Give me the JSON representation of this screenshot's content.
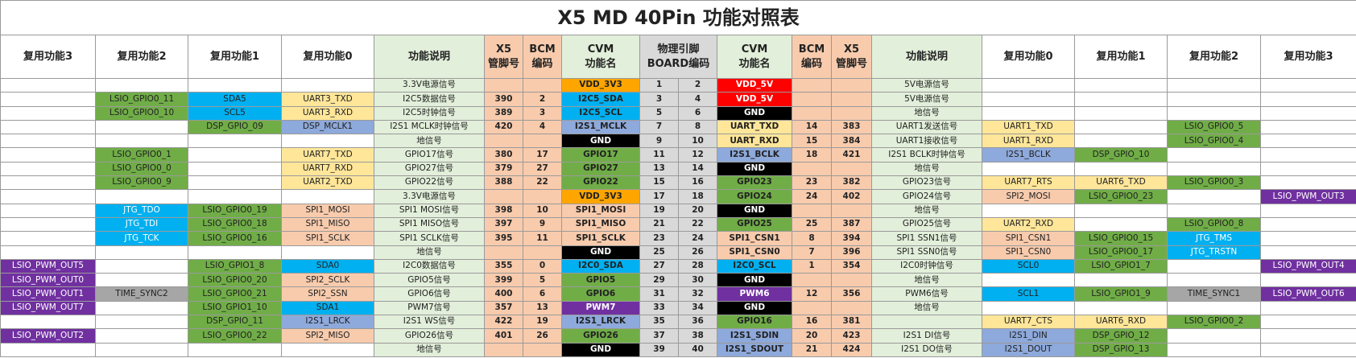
{
  "title": "X5 MD 40Pin 功能对照表",
  "header": [
    "复用功能3",
    "复用功能2",
    "复用功能1",
    "复用功能0",
    "功能说明",
    [
      "X5",
      "管脚号"
    ],
    [
      "BCM",
      "编码"
    ],
    [
      "CVM",
      "功能名"
    ],
    [
      "物理引脚",
      "BOARD编码"
    ],
    [
      "CVM",
      "功能名"
    ],
    [
      "BCM",
      "编码"
    ],
    [
      "X5",
      "管脚号"
    ],
    "功能说明",
    "复用功能0",
    "复用功能1",
    "复用功能2",
    "复用功能3"
  ],
  "rows": [
    [
      null,
      null,
      null,
      null,
      "3.3V电源信号",
      null,
      null,
      "VDD_3V3",
      1,
      2,
      "VDD_5V",
      null,
      null,
      "5V电源信号",
      null,
      null,
      null,
      null
    ],
    [
      null,
      "LSIO_GPIO0_11",
      "SDA5",
      "UART3_TXD",
      "I2C5数据信号",
      390,
      2,
      "I2C5_SDA",
      3,
      4,
      "VDD_5V",
      null,
      null,
      "5V电源信号",
      null,
      null,
      null,
      null
    ],
    [
      null,
      "LSIO_GPIO0_10",
      "SCL5",
      "UART3_RXD",
      "I2C5时钟信号",
      389,
      3,
      "I2C5_SCL",
      5,
      6,
      "GND",
      null,
      null,
      "地信号",
      null,
      null,
      null,
      null
    ],
    [
      null,
      null,
      "DSP_GPIO_09",
      "DSP_MCLK1",
      "I2S1 MCLK时钟信号",
      420,
      4,
      "I2S1_MCLK",
      7,
      8,
      "UART_TXD",
      14,
      383,
      "UART1发送信号",
      "UART1_TXD",
      null,
      "LSIO_GPIO0_5",
      null
    ],
    [
      null,
      null,
      null,
      null,
      "地信号",
      null,
      null,
      "GND",
      9,
      10,
      "UART_RXD",
      15,
      384,
      "UART1接收信号",
      "UART1_RXD",
      null,
      "LSIO_GPIO0_4",
      null
    ],
    [
      null,
      "LSIO_GPIO0_1",
      null,
      "UART7_TXD",
      "GPIO17信号",
      380,
      17,
      "GPIO17",
      11,
      12,
      "I2S1_BCLK",
      18,
      421,
      "I2S1 BCLK时钟信号",
      "I2S1_BCLK",
      "DSP_GPIO_10",
      null,
      null
    ],
    [
      null,
      "LSIO_GPIO0_0",
      null,
      "UART7_RXD",
      "GPIO27信号",
      379,
      27,
      "GPIO27",
      13,
      14,
      "GND",
      null,
      null,
      "地信号",
      null,
      null,
      null,
      null
    ],
    [
      null,
      "LSIO_GPIO0_9",
      null,
      "UART2_TXD",
      "GPIO22信号",
      388,
      22,
      "GPIO22",
      15,
      16,
      "GPIO23",
      23,
      382,
      "GPIO23信号",
      "UART7_RTS",
      "UART6_TXD",
      "LSIO_GPIO0_3",
      null
    ],
    [
      null,
      null,
      null,
      null,
      "3.3V电源信号",
      null,
      null,
      "VDD_3V3",
      17,
      18,
      "GPIO24",
      24,
      402,
      "GPIO24信号",
      "SPI2_MOSI",
      "LSIO_GPIO0_23",
      null,
      "LSIO_PWM_OUT3"
    ],
    [
      null,
      "JTG_TDO",
      "LSIO_GPIO0_19",
      "SPI1_MOSI",
      "SPI1 MOSI信号",
      398,
      10,
      "SPI1_MOSI",
      19,
      20,
      "GND",
      null,
      null,
      "地信号",
      null,
      null,
      null,
      null
    ],
    [
      null,
      "JTG_TDI",
      "LSIO_GPIO0_18",
      "SPI1_MISO",
      "SPI1 MISO信号",
      397,
      9,
      "SPI1_MISO",
      21,
      22,
      "GPIO25",
      25,
      387,
      "GPIO25信号",
      "UART2_RXD",
      null,
      "LSIO_GPIO0_8",
      null
    ],
    [
      null,
      "JTG_TCK",
      "LSIO_GPIO0_16",
      "SPI1_SCLK",
      "SPI1 SCLK信号",
      395,
      11,
      "SPI1_SCLK",
      23,
      24,
      "SPI1_CSN1",
      8,
      394,
      "SPI1 SSN1信号",
      "SPI1_CSN1",
      "LSIO_GPIO0_15",
      "JTG_TMS",
      null
    ],
    [
      null,
      null,
      null,
      null,
      "地信号",
      null,
      null,
      "GND",
      25,
      26,
      "SPI1_CSN0",
      7,
      396,
      "SPI1 SSN0信号",
      "SPI1_CSN0",
      "LSIO_GPIO0_17",
      "JTG_TRSTN",
      null
    ],
    [
      "LSIO_PWM_OUT5",
      null,
      "LSIO_GPIO1_8",
      "SDA0",
      "I2C0数据信号",
      355,
      0,
      "I2C0_SDA",
      27,
      28,
      "I2C0_SCL",
      1,
      354,
      "I2C0时钟信号",
      "SCL0",
      "LSIO_GPIO1_7",
      null,
      "LSIO_PWM_OUT4"
    ],
    [
      "LSIO_PWM_OUT0",
      null,
      "LSIO_GPIO0_20",
      "SPI2_SCLK",
      "GPIO5信号",
      399,
      5,
      "GPIO5",
      29,
      30,
      "GND",
      null,
      null,
      "地信号",
      null,
      null,
      null,
      null
    ],
    [
      "LSIO_PWM_OUT1",
      "TIME_SYNC2",
      "LSIO_GPIO0_21",
      "SPI2_SSN",
      "GPIO6信号",
      400,
      6,
      "GPIO6",
      31,
      32,
      "PWM6",
      12,
      356,
      "PWM6信号",
      "SCL1",
      "LSIO_GPIO1_9",
      "TIME_SYNC1",
      "LSIO_PWM_OUT6"
    ],
    [
      "LSIO_PWM_OUT7",
      null,
      "LSIO_GPIO1_10",
      "SDA1",
      "PWM7信号",
      357,
      13,
      "PWM7",
      33,
      34,
      "GND",
      null,
      null,
      "地信号",
      null,
      null,
      null,
      null
    ],
    [
      null,
      null,
      "DSP_GPIO_11",
      "I2S1_LRCK",
      "I2S1 WS信号",
      422,
      19,
      "I2S1_LRCK",
      35,
      36,
      "GPIO16",
      16,
      381,
      null,
      "UART7_CTS",
      "UART6_RXD",
      "LSIO_GPIO0_2",
      null
    ],
    [
      "LSIO_PWM_OUT2",
      null,
      "LSIO_GPIO0_22",
      "SPI2_MISO",
      "GPIO26信号",
      401,
      26,
      "GPIO26",
      37,
      38,
      "I2S1_SDIN",
      20,
      423,
      "I2S1 DI信号",
      "I2S1_DIN",
      "DSP_GPIO_12",
      null,
      null
    ],
    [
      null,
      null,
      null,
      null,
      "地信号",
      null,
      null,
      "GND",
      39,
      40,
      "I2S1_SDOUT",
      21,
      424,
      "I2S1 DO信号",
      "I2S1_DOUT",
      "DSP_GPIO_13",
      null,
      null
    ]
  ]
}
